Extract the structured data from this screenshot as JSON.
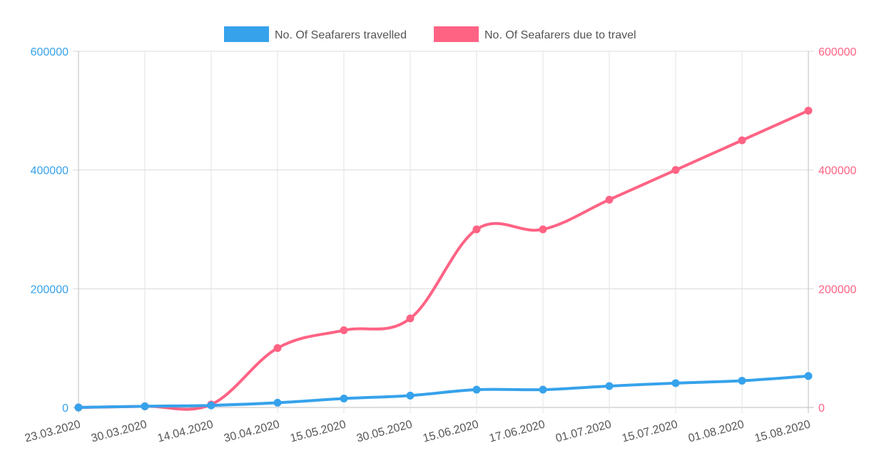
{
  "chart_data": {
    "type": "line",
    "categories": [
      "23.03.2020",
      "30.03.2020",
      "14.04.2020",
      "30.04.2020",
      "15.05.2020",
      "30.05.2020",
      "15.06.2020",
      "17.06.2020",
      "01.07.2020",
      "15.07.2020",
      "01.08.2020",
      "15.08.2020"
    ],
    "series": [
      {
        "name": "No. Of Seafarers travelled",
        "color": "#36a2eb",
        "axis": "left",
        "values": [
          0,
          2000,
          3500,
          8000,
          15000,
          20000,
          30000,
          30000,
          36000,
          41000,
          45000,
          53000
        ]
      },
      {
        "name": "No. Of Seafarers due to travel",
        "color": "#ff6384",
        "axis": "right",
        "values": [
          0,
          2000,
          5000,
          100000,
          130000,
          150000,
          300000,
          300000,
          350000,
          400000,
          450000,
          500000
        ]
      }
    ],
    "y_left": {
      "ylim": [
        0,
        600000
      ],
      "ticks": [
        "0",
        "200000",
        "400000",
        "600000"
      ],
      "color": "#36a2eb"
    },
    "y_right": {
      "ylim": [
        0,
        600000
      ],
      "ticks": [
        "0",
        "200000",
        "400000",
        "600000"
      ],
      "color": "#ff6384"
    },
    "title": "",
    "xlabel": "",
    "grid": true,
    "legend_position": "top-center"
  }
}
